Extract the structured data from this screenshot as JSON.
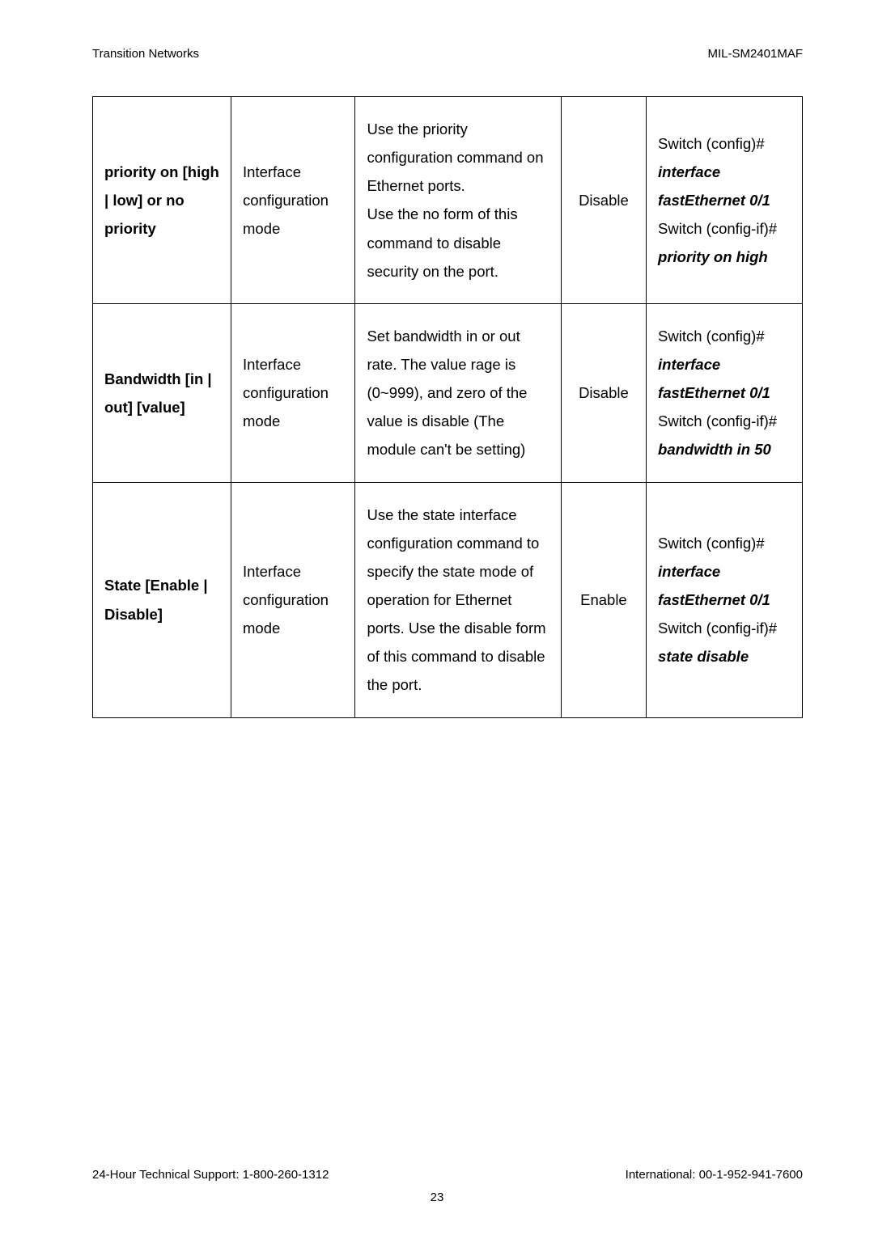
{
  "header": {
    "left": "Transition Networks",
    "right": "MIL-SM2401MAF"
  },
  "table": {
    "border_color": "#000000",
    "rows": [
      {
        "c1": "priority on [high | low] or no priority",
        "c2": "Interface configuration mode",
        "c3": "Use the priority configuration command on Ethernet ports.\nUse the no form of this command to disable security on the port.",
        "c4": "Disable",
        "c5_lines": [
          {
            "text": "Switch (config)#",
            "bold": false,
            "italic": false
          },
          {
            "text": "interface",
            "bold": true,
            "italic": true
          },
          {
            "text": "fastEthernet 0/1",
            "bold": true,
            "italic": true
          },
          {
            "text": "Switch (config-if)#",
            "bold": false,
            "italic": false
          },
          {
            "text": "priority on high",
            "bold": true,
            "italic": true
          }
        ]
      },
      {
        "c1": "Bandwidth [in | out] [value]",
        "c2": "Interface configuration mode",
        "c3": "Set bandwidth in or out rate. The value rage is (0~999), and zero of the value is disable (The module can't be setting)",
        "c4": "Disable",
        "c5_lines": [
          {
            "text": "Switch (config)#",
            "bold": false,
            "italic": false
          },
          {
            "text": "interface",
            "bold": true,
            "italic": true
          },
          {
            "text": "fastEthernet 0/1",
            "bold": true,
            "italic": true
          },
          {
            "text": "Switch (config-if)#",
            "bold": false,
            "italic": false
          },
          {
            "text": "bandwidth in 50",
            "bold": true,
            "italic": true
          }
        ]
      },
      {
        "c1": "State [Enable | Disable]",
        "c2": "Interface configuration mode",
        "c3": "Use the state interface configuration command to specify the state mode of operation for Ethernet ports. Use the disable form of this command to disable the port.",
        "c4": "Enable",
        "c5_lines": [
          {
            "text": "Switch (config)#",
            "bold": false,
            "italic": false
          },
          {
            "text": "interface",
            "bold": true,
            "italic": true
          },
          {
            "text": "fastEthernet 0/1",
            "bold": true,
            "italic": true
          },
          {
            "text": "Switch (config-if)#",
            "bold": false,
            "italic": false
          },
          {
            "text": "state disable",
            "bold": true,
            "italic": true
          }
        ]
      }
    ]
  },
  "footer": {
    "left": "24-Hour Technical Support: 1-800-260-1312",
    "right": "International: 00-1-952-941-7600"
  },
  "page_number": "23"
}
